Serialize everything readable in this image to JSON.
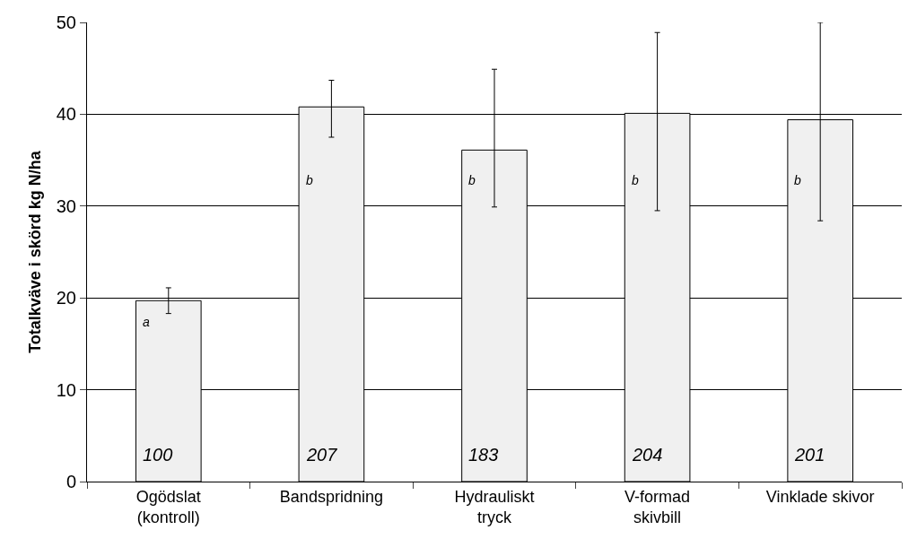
{
  "chart_data": {
    "type": "bar",
    "ylabel": "Totalkväve i skörd kg N/ha",
    "categories": [
      "Ogödslat\n(kontroll)",
      "Bandspridning",
      "Hydrauliskt\ntryck",
      "V-formad\nskivbill",
      "Vinklade skivor"
    ],
    "values": [
      19.7,
      40.8,
      36.1,
      40.1,
      39.4
    ],
    "errors": [
      [
        18.3,
        21.1
      ],
      [
        37.5,
        43.7
      ],
      [
        29.9,
        44.9
      ],
      [
        29.5,
        48.9
      ],
      [
        28.4,
        50
      ]
    ],
    "color": "#f0f0f0",
    "ylim": [
      0,
      50
    ],
    "yticks": [
      0,
      10,
      20,
      30,
      40,
      50
    ],
    "grid": "y",
    "annotations": [
      "a",
      "b",
      "b",
      "b",
      "b",
      "100",
      "207",
      "183",
      "204",
      "201"
    ]
  }
}
